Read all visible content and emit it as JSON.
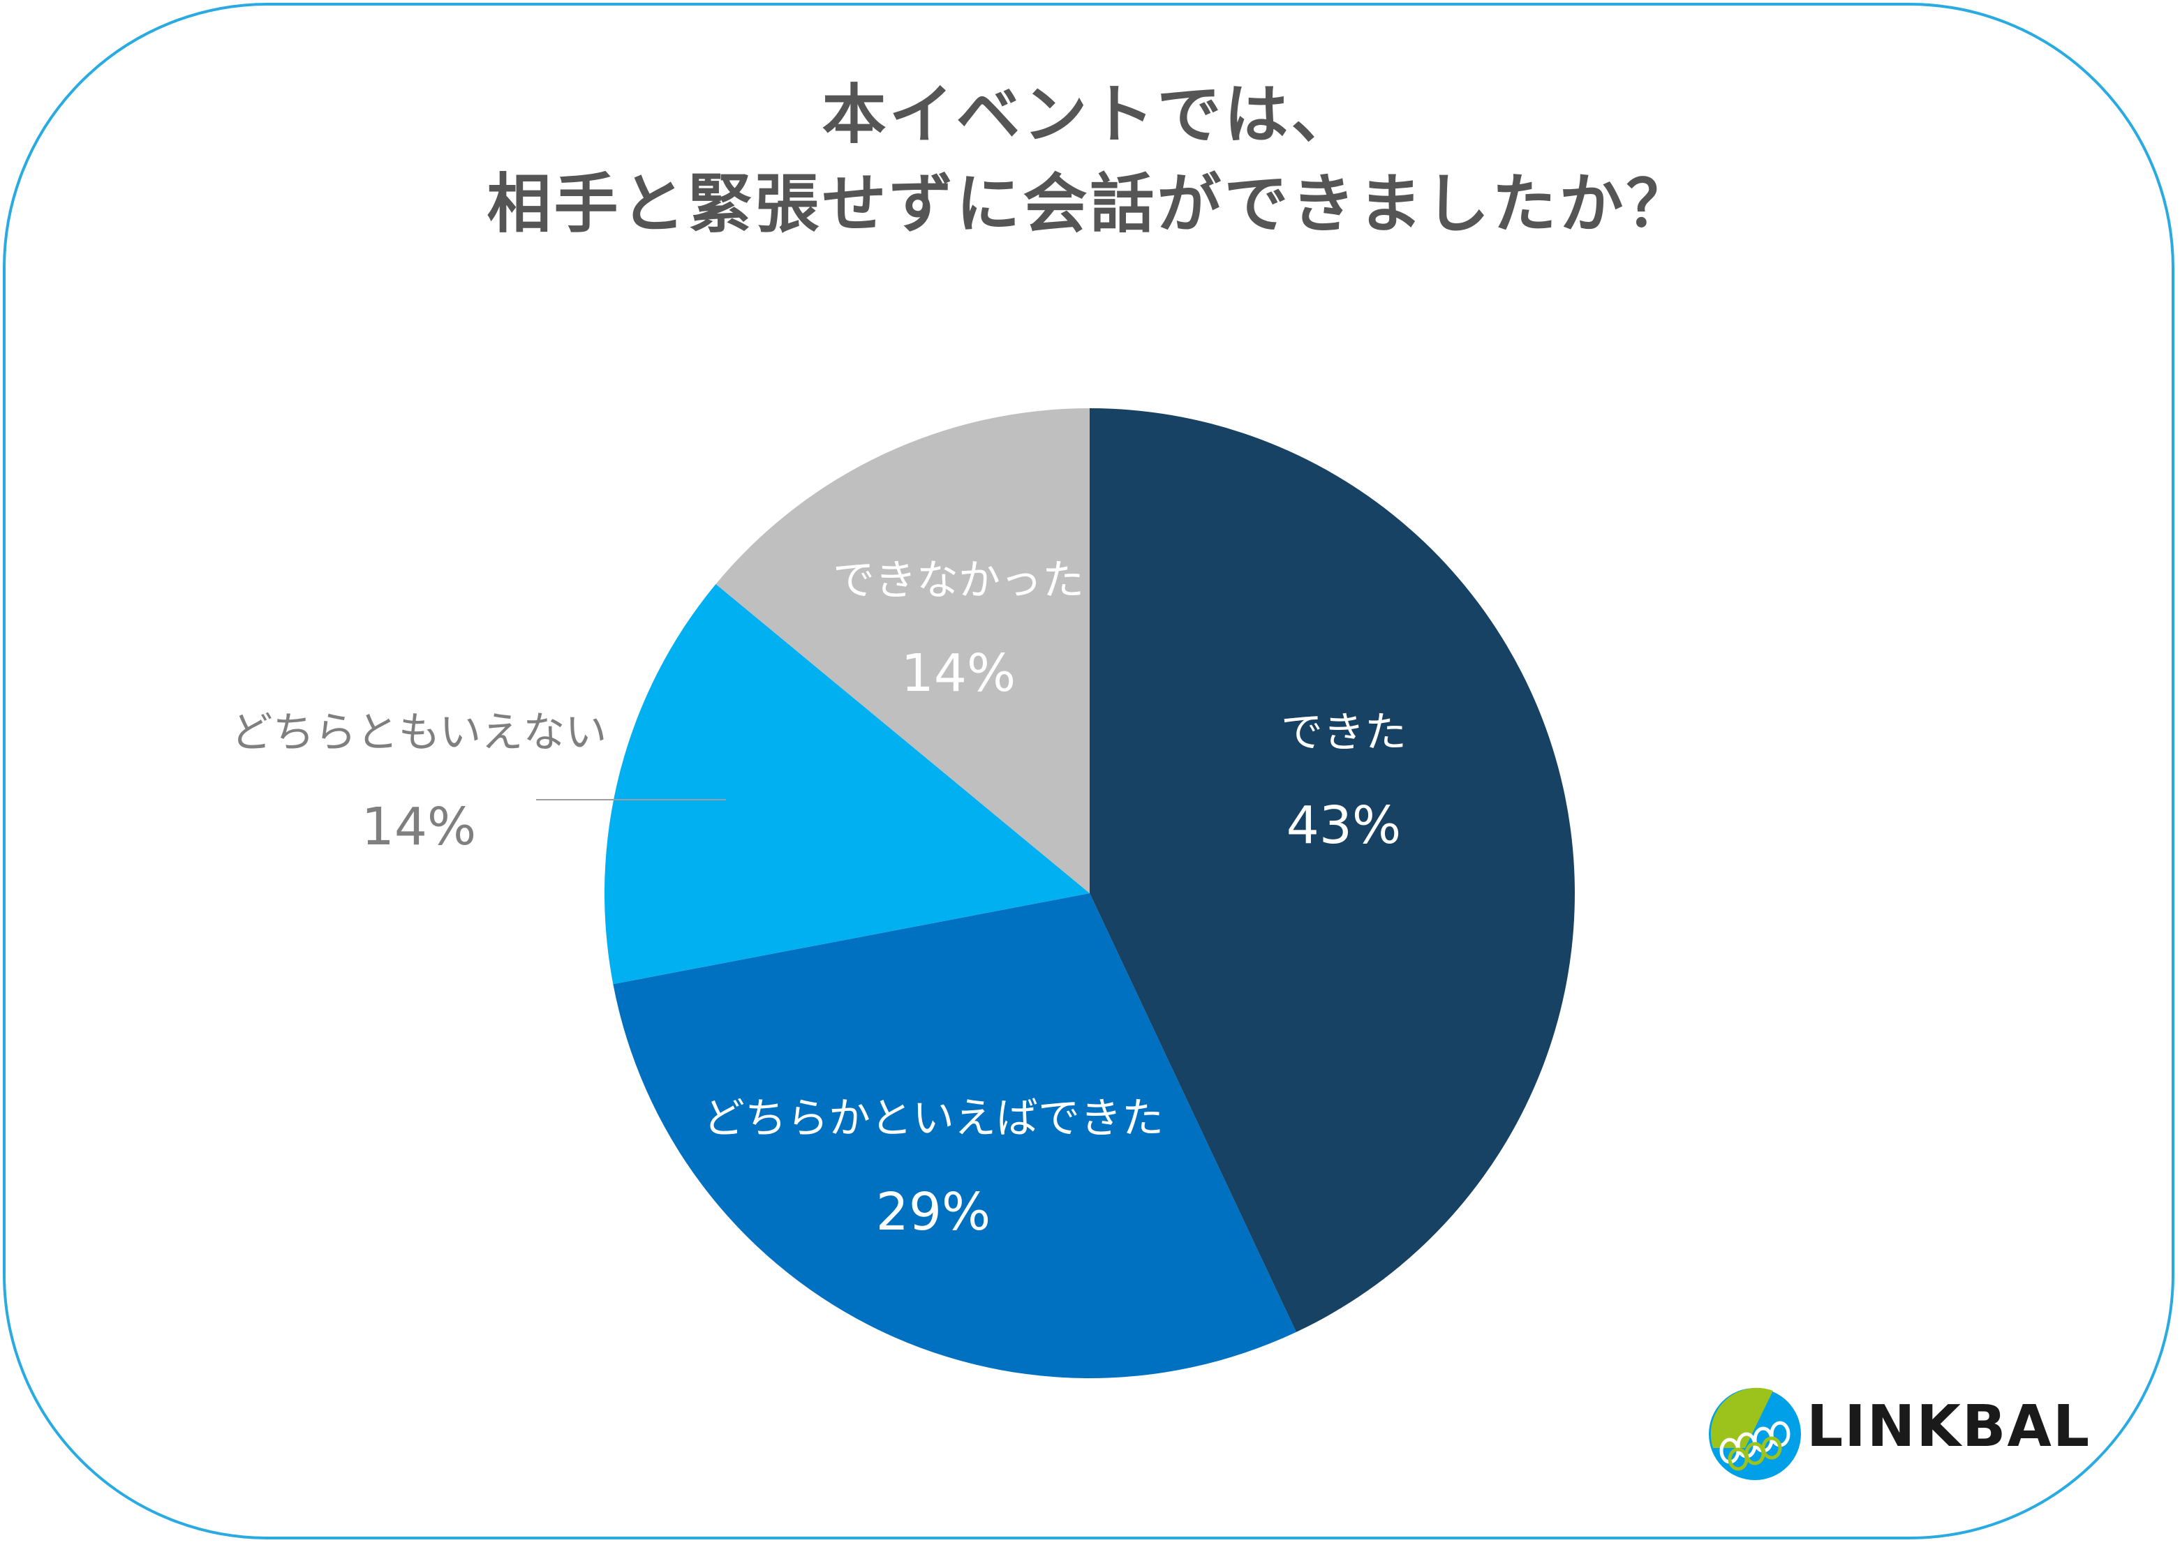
{
  "title_line1": "本イベントでは、",
  "title_line2": "相手と緊張せずに会話ができましたか？",
  "chart_data": {
    "type": "pie",
    "slices": [
      {
        "label": "できた",
        "value": 43,
        "display": "43%",
        "color": "#174263"
      },
      {
        "label": "どちらかといえばできた",
        "value": 29,
        "display": "29%",
        "color": "#0070c0"
      },
      {
        "label": "どちらともいえない",
        "value": 14,
        "display": "14%",
        "color": "#00b0f0"
      },
      {
        "label": "できなかった",
        "value": 14,
        "display": "14%",
        "color": "#bfbfbf"
      }
    ]
  },
  "logo": {
    "text": "LINKBAL"
  }
}
